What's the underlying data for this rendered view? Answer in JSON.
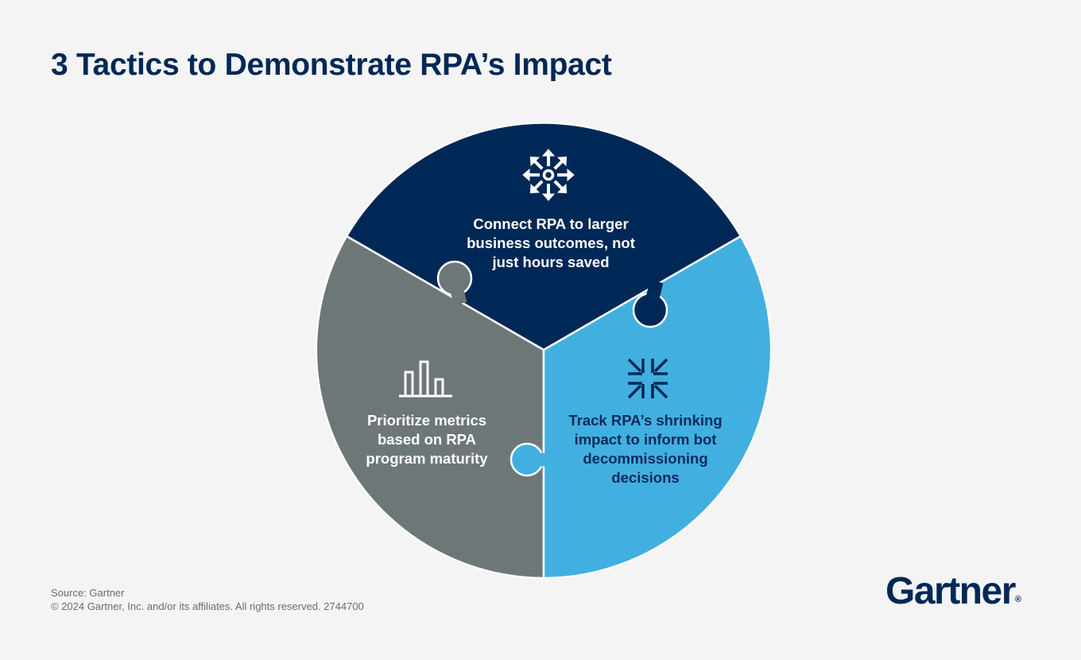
{
  "title": "3 Tactics to Demonstrate RPA’s Impact",
  "colors": {
    "background": "#f4f4f4",
    "navy": "#002856",
    "gray": "#6e7777",
    "blue": "#41b0e0"
  },
  "pieces": [
    {
      "icon": "arrows-outward-icon",
      "lines": [
        "Connect RPA to larger",
        "business outcomes, not",
        "just hours saved"
      ]
    },
    {
      "icon": "bar-chart-icon",
      "lines": [
        "Prioritize metrics",
        "based on RPA",
        "program maturity"
      ]
    },
    {
      "icon": "arrows-inward-icon",
      "lines": [
        "Track RPA’s shrinking",
        "impact to inform bot",
        "decommissioning",
        "decisions"
      ]
    }
  ],
  "footer": {
    "source": "Source: Gartner",
    "copyright": "© 2024 Gartner, Inc. and/or its affiliates. All rights reserved. 2744700"
  },
  "logo": {
    "text": "Gartner",
    "mark": "®"
  }
}
